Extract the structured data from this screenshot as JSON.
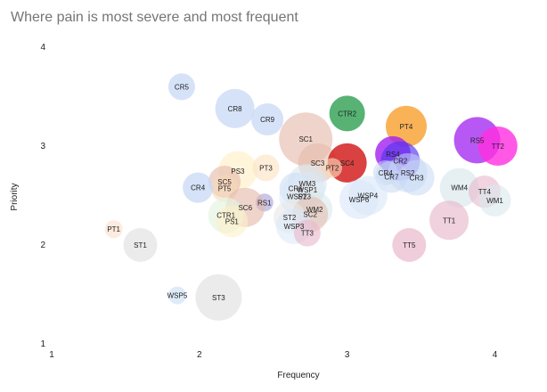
{
  "chart_data": {
    "type": "scatter",
    "title": "Where pain is most severe and most frequent",
    "xlabel": "Frequency",
    "ylabel": "Priority",
    "xlim": [
      1,
      4.2
    ],
    "ylim": [
      1,
      4
    ],
    "xticks": [
      "1",
      "2",
      "3",
      "4"
    ],
    "yticks": [
      "1",
      "2",
      "3",
      "4"
    ],
    "grid": false,
    "points": [
      {
        "label": "CR5",
        "x": 1.88,
        "y": 3.6,
        "size": 15,
        "color": "#c8d8f4",
        "opacity": 0.75
      },
      {
        "label": "CR8",
        "x": 2.24,
        "y": 3.38,
        "size": 22,
        "color": "#c8d8f4",
        "opacity": 0.75
      },
      {
        "label": "CR9",
        "x": 2.46,
        "y": 3.27,
        "size": 18,
        "color": "#c8d8f4",
        "opacity": 0.75
      },
      {
        "label": "CTR2",
        "x": 3.0,
        "y": 3.33,
        "size": 20,
        "color": "#3aa55a",
        "opacity": 0.85
      },
      {
        "label": "PT4",
        "x": 3.4,
        "y": 3.2,
        "size": 23,
        "color": "#f9a43a",
        "opacity": 0.85
      },
      {
        "label": "RS5",
        "x": 3.88,
        "y": 3.06,
        "size": 26,
        "color": "#a020f0",
        "opacity": 0.75
      },
      {
        "label": "TT2",
        "x": 4.02,
        "y": 3.0,
        "size": 22,
        "color": "#ff2ee0",
        "opacity": 0.8
      },
      {
        "label": "SC1",
        "x": 2.72,
        "y": 3.07,
        "size": 30,
        "color": "#e4b8a8",
        "opacity": 0.6
      },
      {
        "label": "SC3",
        "x": 2.8,
        "y": 2.83,
        "size": 22,
        "color": "#e4b8a8",
        "opacity": 0.55
      },
      {
        "label": "SC4",
        "x": 3.0,
        "y": 2.83,
        "size": 22,
        "color": "#d42020",
        "opacity": 0.85
      },
      {
        "label": "PT2",
        "x": 2.9,
        "y": 2.78,
        "size": 11,
        "color": "#f7d8b8",
        "opacity": 0.65
      },
      {
        "label": "RS4",
        "x": 3.31,
        "y": 2.92,
        "size": 20,
        "color": "#a020f0",
        "opacity": 0.8
      },
      {
        "label": "CR2",
        "x": 3.36,
        "y": 2.85,
        "size": 22,
        "color": "#5533ee",
        "opacity": 0.65
      },
      {
        "label": "RS2",
        "x": 3.41,
        "y": 2.73,
        "size": 22,
        "color": "#c8d8f4",
        "opacity": 0.55
      },
      {
        "label": "CR7",
        "x": 3.3,
        "y": 2.69,
        "size": 18,
        "color": "#c8d8f4",
        "opacity": 0.55
      },
      {
        "label": "CR3",
        "x": 3.47,
        "y": 2.68,
        "size": 20,
        "color": "#c8d8f4",
        "opacity": 0.55
      },
      {
        "label": "CR4",
        "x": 3.26,
        "y": 2.73,
        "size": 14,
        "color": "#c8d8f4",
        "opacity": 0.55
      },
      {
        "label": "PS3",
        "x": 2.26,
        "y": 2.75,
        "size": 22,
        "color": "#fdf0c8",
        "opacity": 0.65
      },
      {
        "label": "PT3",
        "x": 2.45,
        "y": 2.78,
        "size": 15,
        "color": "#fce4c4",
        "opacity": 0.65
      },
      {
        "label": "SC5",
        "x": 2.17,
        "y": 2.64,
        "size": 18,
        "color": "#e4b8a8",
        "opacity": 0.6
      },
      {
        "label": "PT5",
        "x": 2.17,
        "y": 2.57,
        "size": 15,
        "color": "#f7d8b8",
        "opacity": 0.55
      },
      {
        "label": "CR4",
        "x": 1.99,
        "y": 2.58,
        "size": 17,
        "color": "#c8d8f4",
        "opacity": 0.75
      },
      {
        "label": "WM3",
        "x": 2.73,
        "y": 2.62,
        "size": 22,
        "color": "#d8e8ec",
        "opacity": 0.6
      },
      {
        "label": "CR6",
        "x": 2.65,
        "y": 2.57,
        "size": 18,
        "color": "#c8d8f4",
        "opacity": 0.55
      },
      {
        "label": "WSP1",
        "x": 2.73,
        "y": 2.56,
        "size": 20,
        "color": "#d8e8f8",
        "opacity": 0.55
      },
      {
        "label": "WSP2",
        "x": 2.66,
        "y": 2.49,
        "size": 20,
        "color": "#d8e8f8",
        "opacity": 0.55
      },
      {
        "label": "ST3",
        "x": 2.71,
        "y": 2.49,
        "size": 18,
        "color": "#e8e8e8",
        "opacity": 0.6
      },
      {
        "label": "WSP4",
        "x": 3.14,
        "y": 2.5,
        "size": 22,
        "color": "#d8e8f8",
        "opacity": 0.6
      },
      {
        "label": "WSP6",
        "x": 3.08,
        "y": 2.46,
        "size": 22,
        "color": "#d8e8f8",
        "opacity": 0.6
      },
      {
        "label": "RS1",
        "x": 2.44,
        "y": 2.43,
        "size": 10,
        "color": "#a8a0d8",
        "opacity": 0.6
      },
      {
        "label": "SC6",
        "x": 2.31,
        "y": 2.38,
        "size": 22,
        "color": "#e4b8a8",
        "opacity": 0.6
      },
      {
        "label": "CTR1",
        "x": 2.18,
        "y": 2.3,
        "size": 20,
        "color": "#e4f4e0",
        "opacity": 0.65
      },
      {
        "label": "PS1",
        "x": 2.22,
        "y": 2.24,
        "size": 18,
        "color": "#fdf0c8",
        "opacity": 0.6
      },
      {
        "label": "WM2",
        "x": 2.78,
        "y": 2.36,
        "size": 20,
        "color": "#d8e8ec",
        "opacity": 0.6
      },
      {
        "label": "SC2",
        "x": 2.75,
        "y": 2.31,
        "size": 20,
        "color": "#e4b8a8",
        "opacity": 0.55
      },
      {
        "label": "ST2",
        "x": 2.61,
        "y": 2.28,
        "size": 18,
        "color": "#e8e8e8",
        "opacity": 0.6
      },
      {
        "label": "WSP3",
        "x": 2.64,
        "y": 2.19,
        "size": 20,
        "color": "#d8e8f8",
        "opacity": 0.55
      },
      {
        "label": "TT3",
        "x": 2.73,
        "y": 2.12,
        "size": 15,
        "color": "#e8b8cc",
        "opacity": 0.6
      },
      {
        "label": "WM4",
        "x": 3.76,
        "y": 2.58,
        "size": 22,
        "color": "#d8e8ec",
        "opacity": 0.65
      },
      {
        "label": "TT4",
        "x": 3.93,
        "y": 2.54,
        "size": 18,
        "color": "#e8b8cc",
        "opacity": 0.6
      },
      {
        "label": "WM1",
        "x": 4.0,
        "y": 2.45,
        "size": 18,
        "color": "#d8e8ec",
        "opacity": 0.6
      },
      {
        "label": "TT1",
        "x": 3.69,
        "y": 2.25,
        "size": 22,
        "color": "#e8b8cc",
        "opacity": 0.65
      },
      {
        "label": "TT5",
        "x": 3.42,
        "y": 2.0,
        "size": 19,
        "color": "#e8b8cc",
        "opacity": 0.7
      },
      {
        "label": "PT1",
        "x": 1.42,
        "y": 2.16,
        "size": 10,
        "color": "#fce4d4",
        "opacity": 0.75
      },
      {
        "label": "ST1",
        "x": 1.6,
        "y": 2.0,
        "size": 19,
        "color": "#e8e8e8",
        "opacity": 0.85
      },
      {
        "label": "WSP5",
        "x": 1.85,
        "y": 1.49,
        "size": 10,
        "color": "#d8e8f8",
        "opacity": 0.85
      },
      {
        "label": "ST3",
        "x": 2.13,
        "y": 1.47,
        "size": 26,
        "color": "#e8e8e8",
        "opacity": 0.85
      }
    ]
  }
}
